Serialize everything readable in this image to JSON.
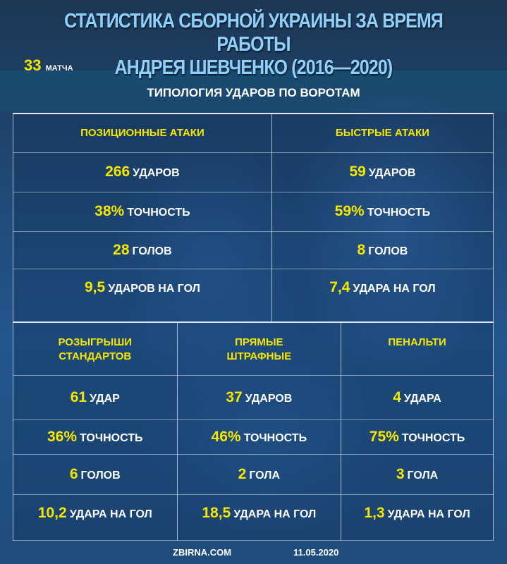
{
  "title_line1": "СТАТИСТИКА СБОРНОЙ УКРАИНЫ ЗА ВРЕМЯ РАБОТЫ",
  "title_line2": "АНДРЕЯ ШЕВЧЕНКО (2016—2020)",
  "matches": {
    "number": "33",
    "label": "МАТЧА"
  },
  "subtitle": "ТИПОЛОГИЯ УДАРОВ ПО ВОРОТАМ",
  "colors": {
    "accent_yellow": "#f7e600",
    "title_blue": "#8fd0fb",
    "background": "#1f4a78"
  },
  "top_table": [
    {
      "header": "ПОЗИЦИОННЫЕ АТАКИ",
      "rows": [
        {
          "value": "266",
          "unit": "УДАРОВ"
        },
        {
          "value": "38%",
          "unit": "ТОЧНОСТЬ"
        },
        {
          "value": "28",
          "unit": "ГОЛОВ"
        },
        {
          "value": "9,5",
          "unit": "УДАРОВ НА ГОЛ"
        }
      ]
    },
    {
      "header": "БЫСТРЫЕ АТАКИ",
      "rows": [
        {
          "value": "59",
          "unit": "УДАРОВ"
        },
        {
          "value": "59%",
          "unit": "ТОЧНОСТЬ"
        },
        {
          "value": "8",
          "unit": "ГОЛОВ"
        },
        {
          "value": "7,4",
          "unit": "УДАРА НА ГОЛ"
        }
      ]
    }
  ],
  "bottom_table": [
    {
      "header_line1": "РОЗЫГРЫШИ",
      "header_line2": "СТАНДАРТОВ",
      "rows": [
        {
          "value": "61",
          "unit": "УДАР"
        },
        {
          "value": "36%",
          "unit": "ТОЧНОСТЬ"
        },
        {
          "value": "6",
          "unit": "ГОЛОВ"
        },
        {
          "value": "10,2",
          "unit": "УДАРА НА ГОЛ"
        }
      ]
    },
    {
      "header_line1": "ПРЯМЫЕ",
      "header_line2": "ШТРАФНЫЕ",
      "rows": [
        {
          "value": "37",
          "unit": "УДАРОВ"
        },
        {
          "value": "46%",
          "unit": "ТОЧНОСТЬ"
        },
        {
          "value": "2",
          "unit": "ГОЛА"
        },
        {
          "value": "18,5",
          "unit": "УДАРА НА ГОЛ"
        }
      ]
    },
    {
      "header_line1": "ПЕНАЛЬТИ",
      "header_line2": "",
      "rows": [
        {
          "value": "4",
          "unit": "УДАРА"
        },
        {
          "value": "75%",
          "unit": "ТОЧНОСТЬ"
        },
        {
          "value": "3",
          "unit": "ГОЛА"
        },
        {
          "value": "1,3",
          "unit": "УДАРА НА ГОЛ"
        }
      ]
    }
  ],
  "footer": {
    "site": "ZBIRNA.COM",
    "date": "11.05.2020"
  }
}
